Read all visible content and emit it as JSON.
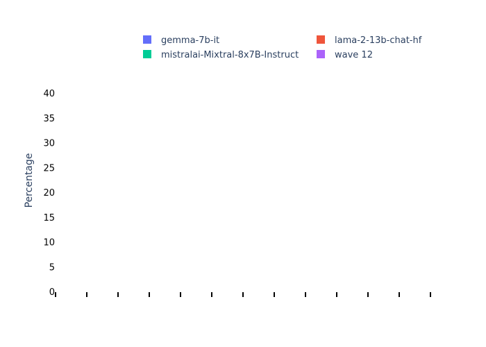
{
  "chart_data": {
    "type": "bar",
    "title": "",
    "xlabel": "",
    "ylabel": "Percentage",
    "ylim": [
      0,
      40
    ],
    "yticks": [
      0,
      5,
      10,
      15,
      20,
      25,
      30,
      35,
      40
    ],
    "x_tick_count": 13,
    "grid": false,
    "legend_position": "top",
    "series": [
      {
        "name": "gemma-7b-it",
        "color": "#636efa",
        "values": []
      },
      {
        "name": "lama-2-13b-chat-hf",
        "color": "#ef553b",
        "values": []
      },
      {
        "name": "mistralai-Mixtral-8x7B-Instruct",
        "color": "#00cc96",
        "values": []
      },
      {
        "name": "wave 12",
        "color": "#ab63fa",
        "values": []
      }
    ]
  }
}
